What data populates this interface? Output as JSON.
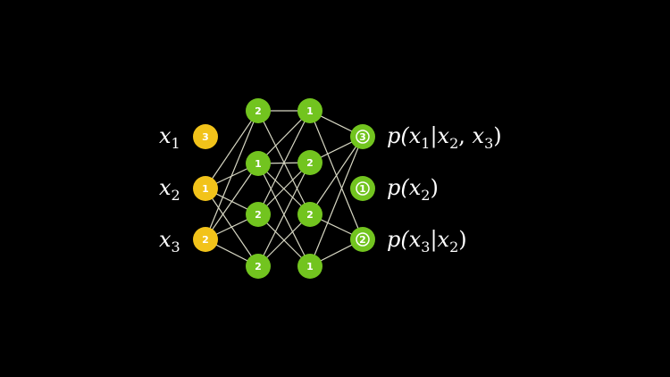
{
  "diagram": {
    "background": "#000000",
    "colors": {
      "input_node": "#f2c31a",
      "hidden_node": "#72c41f",
      "output_node": "#72c41f",
      "edge": "#d8d8c4",
      "text": "#ffffff"
    },
    "inputs": [
      {
        "var": "x",
        "sub": "1",
        "num": "3"
      },
      {
        "var": "x",
        "sub": "2",
        "num": "1"
      },
      {
        "var": "x",
        "sub": "3",
        "num": "2"
      }
    ],
    "hidden1": [
      {
        "num": "2"
      },
      {
        "num": "1"
      },
      {
        "num": "2"
      },
      {
        "num": "2"
      }
    ],
    "hidden2": [
      {
        "num": "1"
      },
      {
        "num": "2"
      },
      {
        "num": "2"
      },
      {
        "num": "1"
      }
    ],
    "outputs": [
      {
        "num": "3",
        "label": "p(x1|x2, x3)"
      },
      {
        "num": "1",
        "label": "p(x2)"
      },
      {
        "num": "2",
        "label": "p(x3|x2)"
      }
    ],
    "edges_in_h1": [
      [
        1,
        0
      ],
      [
        1,
        1
      ],
      [
        1,
        2
      ],
      [
        1,
        3
      ],
      [
        2,
        0
      ],
      [
        2,
        1
      ],
      [
        2,
        2
      ],
      [
        2,
        3
      ]
    ],
    "edges_h1_h2": [
      [
        0,
        0
      ],
      [
        0,
        2
      ],
      [
        1,
        0
      ],
      [
        1,
        1
      ],
      [
        1,
        2
      ],
      [
        1,
        3
      ],
      [
        2,
        0
      ],
      [
        2,
        1
      ],
      [
        2,
        3
      ],
      [
        3,
        1
      ],
      [
        3,
        2
      ]
    ],
    "edges_h2_out": [
      [
        0,
        0
      ],
      [
        0,
        2
      ],
      [
        1,
        0
      ],
      [
        2,
        0
      ],
      [
        2,
        2
      ],
      [
        3,
        0
      ],
      [
        3,
        2
      ]
    ]
  }
}
